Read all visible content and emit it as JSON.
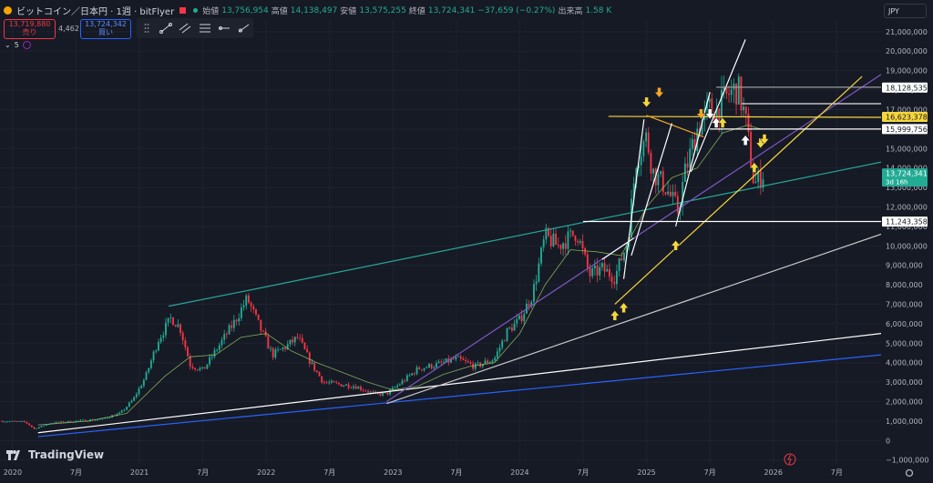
{
  "header": {
    "title": "ビットコイン／日本円 · 1週 · bitFlyer",
    "open_label": "始値",
    "open_value": "13,756,954",
    "high_label": "高値",
    "high_value": "14,138,497",
    "low_label": "安値",
    "low_value": "13,575,255",
    "close_label": "終値",
    "close_value": "13,724,341",
    "change": "−37,659 (−0.27%)",
    "volume_label": "出来高",
    "volume_value": "1.58 K"
  },
  "trade": {
    "sell_price": "13,719,880",
    "sell_label": "売り",
    "spread": "4,462",
    "buy_price": "13,724,342",
    "buy_label": "買い"
  },
  "indicator": {
    "label": "5"
  },
  "currency": "JPY",
  "logo_text": "TradingView",
  "colors": {
    "up": "#22ab94",
    "down": "#f23645",
    "background": "#161a25",
    "highlight": "#f5d63d",
    "purple": "#7e57c2",
    "blue": "#2962ff"
  },
  "chart_data": {
    "type": "candlestick",
    "symbol": "BTC/JPY",
    "interval": "1週",
    "y_ticks": [
      21000000,
      20000000,
      19000000,
      18000000,
      17000000,
      16000000,
      15000000,
      14000000,
      13000000,
      12000000,
      11000000,
      10000000,
      9000000,
      8000000,
      7000000,
      6000000,
      5000000,
      4000000,
      3000000,
      2000000,
      1000000,
      0,
      -1000000
    ],
    "y_tick_labels": [
      "21,000,000",
      "20,000,000",
      "19,000,000",
      "18,000,000",
      "17,000,000",
      "16,000,000",
      "15,000,000",
      "14,000,000",
      "13,000,000",
      "12,000,000",
      "11,000,000",
      "10,000,000",
      "9,000,000",
      "8,000,000",
      "7,000,000",
      "6,000,000",
      "5,000,000",
      "4,000,000",
      "3,000,000",
      "2,000,000",
      "1,000,000",
      "0",
      "−1,000,000"
    ],
    "ylim": [
      -1200000,
      21600000
    ],
    "x_ticks": [
      2020.0,
      2020.5,
      2021.0,
      2021.5,
      2022.0,
      2022.5,
      2023.0,
      2023.5,
      2024.0,
      2024.5,
      2025.0,
      2025.5,
      2026.0,
      2026.5
    ],
    "x_tick_labels": [
      "2020",
      "7月",
      "2021",
      "7月",
      "2022",
      "7月",
      "2023",
      "7月",
      "2024",
      "7月",
      "2025",
      "7月",
      "2026",
      "7月"
    ],
    "xlim": [
      2019.9,
      2026.85
    ],
    "price_points": [
      [
        2019.9,
        1000000
      ],
      [
        2020.1,
        950000
      ],
      [
        2020.17,
        600000
      ],
      [
        2020.3,
        900000
      ],
      [
        2020.5,
        1000000
      ],
      [
        2020.7,
        1100000
      ],
      [
        2020.85,
        1400000
      ],
      [
        2020.95,
        2100000
      ],
      [
        2021.05,
        3300000
      ],
      [
        2021.15,
        5200000
      ],
      [
        2021.25,
        6300000
      ],
      [
        2021.32,
        5800000
      ],
      [
        2021.4,
        3900000
      ],
      [
        2021.5,
        3600000
      ],
      [
        2021.6,
        4600000
      ],
      [
        2021.75,
        6100000
      ],
      [
        2021.85,
        7300000
      ],
      [
        2021.95,
        5800000
      ],
      [
        2022.05,
        4400000
      ],
      [
        2022.15,
        4800000
      ],
      [
        2022.25,
        5300000
      ],
      [
        2022.35,
        4000000
      ],
      [
        2022.45,
        3000000
      ],
      [
        2022.55,
        2900000
      ],
      [
        2022.7,
        2800000
      ],
      [
        2022.85,
        2400000
      ],
      [
        2022.95,
        2400000
      ],
      [
        2023.05,
        2900000
      ],
      [
        2023.2,
        3700000
      ],
      [
        2023.35,
        3900000
      ],
      [
        2023.5,
        4200000
      ],
      [
        2023.65,
        3800000
      ],
      [
        2023.8,
        4200000
      ],
      [
        2023.9,
        5600000
      ],
      [
        2024.0,
        6200000
      ],
      [
        2024.1,
        7500000
      ],
      [
        2024.2,
        10500000
      ],
      [
        2024.3,
        10000000
      ],
      [
        2024.45,
        10700000
      ],
      [
        2024.55,
        8500000
      ],
      [
        2024.65,
        8800000
      ],
      [
        2024.75,
        8400000
      ],
      [
        2024.85,
        10200000
      ],
      [
        2024.92,
        14500000
      ],
      [
        2025.0,
        15600000
      ],
      [
        2025.05,
        13800000
      ],
      [
        2025.15,
        13000000
      ],
      [
        2025.25,
        11800000
      ],
      [
        2025.3,
        13700000
      ],
      [
        2025.4,
        16000000
      ],
      [
        2025.5,
        17100000
      ],
      [
        2025.55,
        16900000
      ],
      [
        2025.65,
        17800000
      ],
      [
        2025.72,
        18100000
      ],
      [
        2025.78,
        16500000
      ],
      [
        2025.85,
        13100000
      ],
      [
        2025.92,
        13724341
      ]
    ],
    "ma_points": [
      [
        2020.2,
        800000
      ],
      [
        2020.6,
        1000000
      ],
      [
        2020.9,
        1400000
      ],
      [
        2021.2,
        3300000
      ],
      [
        2021.4,
        4300000
      ],
      [
        2021.6,
        4400000
      ],
      [
        2021.8,
        5300000
      ],
      [
        2022.0,
        5500000
      ],
      [
        2022.2,
        4600000
      ],
      [
        2022.4,
        4000000
      ],
      [
        2022.6,
        3500000
      ],
      [
        2022.8,
        3000000
      ],
      [
        2023.0,
        2600000
      ],
      [
        2023.2,
        2800000
      ],
      [
        2023.4,
        3400000
      ],
      [
        2023.6,
        3800000
      ],
      [
        2023.8,
        4000000
      ],
      [
        2024.0,
        5500000
      ],
      [
        2024.2,
        8000000
      ],
      [
        2024.4,
        9800000
      ],
      [
        2024.6,
        9700000
      ],
      [
        2024.8,
        9500000
      ],
      [
        2025.0,
        12000000
      ],
      [
        2025.2,
        13500000
      ],
      [
        2025.4,
        14000000
      ],
      [
        2025.6,
        15800000
      ],
      [
        2025.8,
        16200000
      ],
      [
        2025.9,
        16000000
      ]
    ],
    "price_labels": [
      {
        "value": 18128535,
        "label": "18,128,535",
        "style": "white"
      },
      {
        "value": 16623378,
        "label": "16,623,378",
        "style": "yellow"
      },
      {
        "value": 15999756,
        "label": "15,999,756",
        "style": "white"
      },
      {
        "value": 13724341,
        "label": "13,724,341",
        "countdown": "3d 16h",
        "style": "green"
      },
      {
        "value": 11243358,
        "label": "11,243,358",
        "style": "white"
      }
    ],
    "trendlines": [
      {
        "x1": 2020.2,
        "y1": 200000,
        "x2": 2026.85,
        "y2": 4400000,
        "color": "#2962ff"
      },
      {
        "x1": 2020.2,
        "y1": 400000,
        "x2": 2026.85,
        "y2": 5500000,
        "color": "#ffffff"
      },
      {
        "x1": 2022.95,
        "y1": 1900000,
        "x2": 2026.85,
        "y2": 10600000,
        "color": "#c8c8c8"
      },
      {
        "x1": 2021.23,
        "y1": 6900000,
        "x2": 2021.85,
        "y2": 7700000,
        "color": "#26a69a"
      },
      {
        "x1": 2021.85,
        "y1": 7700000,
        "x2": 2024.5,
        "y2": 11200000,
        "color": "#26a69a"
      },
      {
        "x1": 2024.5,
        "y1": 11200000,
        "x2": 2026.85,
        "y2": 14300000,
        "color": "#26a69a"
      },
      {
        "x1": 2022.95,
        "y1": 2000000,
        "x2": 2026.85,
        "y2": 18800000,
        "color": "#7e57c2"
      },
      {
        "x1": 2024.75,
        "y1": 7000000,
        "x2": 2026.7,
        "y2": 18700000,
        "color": "#f5d63d"
      },
      {
        "x1": 2024.7,
        "y1": 16650000,
        "x2": 2026.85,
        "y2": 16600000,
        "color": "#f5d63d"
      },
      {
        "x1": 2025.0,
        "y1": 16700000,
        "x2": 2025.45,
        "y2": 15600000,
        "color": "#f5a623"
      },
      {
        "x1": 2024.65,
        "y1": 9300000,
        "x2": 2024.9,
        "y2": 10400000,
        "color": "#ffffff"
      },
      {
        "x1": 2024.82,
        "y1": 8300000,
        "x2": 2024.98,
        "y2": 16500000,
        "color": "#ffffff"
      },
      {
        "x1": 2024.88,
        "y1": 9500000,
        "x2": 2025.2,
        "y2": 16300000,
        "color": "#ffffff"
      },
      {
        "x1": 2025.23,
        "y1": 11000000,
        "x2": 2025.5,
        "y2": 17900000,
        "color": "#ffffff"
      },
      {
        "x1": 2025.35,
        "y1": 13800000,
        "x2": 2025.78,
        "y2": 20600000,
        "color": "#ffffff"
      },
      {
        "x1": 2025.75,
        "y1": 17300000,
        "x2": 2026.85,
        "y2": 17300000,
        "color": "#e0e0e0"
      },
      {
        "x1": 2025.55,
        "y1": 18150000,
        "x2": 2026.85,
        "y2": 18150000,
        "color": "#9e9e9e"
      },
      {
        "x1": 2024.5,
        "y1": 11250000,
        "x2": 2026.85,
        "y2": 11250000,
        "color": "#ffffff"
      },
      {
        "x1": 2025.5,
        "y1": 16000000,
        "x2": 2026.85,
        "y2": 16000000,
        "color": "#ffffff"
      }
    ],
    "arrows": [
      {
        "x": 2024.75,
        "y": 6400000,
        "dir": "up",
        "color": "#f5d63d"
      },
      {
        "x": 2024.82,
        "y": 6800000,
        "dir": "up",
        "color": "#f5d63d"
      },
      {
        "x": 2025.23,
        "y": 10000000,
        "dir": "up",
        "color": "#f5d63d"
      },
      {
        "x": 2025.0,
        "y": 17400000,
        "dir": "down",
        "color": "#f5d63d"
      },
      {
        "x": 2025.1,
        "y": 17900000,
        "dir": "down",
        "color": "#f5a623"
      },
      {
        "x": 2025.43,
        "y": 16800000,
        "dir": "down",
        "color": "#f5a623"
      },
      {
        "x": 2025.5,
        "y": 16800000,
        "dir": "down",
        "color": "#ffffff"
      },
      {
        "x": 2025.55,
        "y": 16300000,
        "dir": "up",
        "color": "#ffffff"
      },
      {
        "x": 2025.6,
        "y": 16300000,
        "dir": "up",
        "color": "#f5d63d"
      },
      {
        "x": 2025.78,
        "y": 15400000,
        "dir": "up",
        "color": "#ffffff"
      },
      {
        "x": 2025.85,
        "y": 14000000,
        "dir": "up",
        "color": "#f5d63d"
      },
      {
        "x": 2025.9,
        "y": 15300000,
        "dir": "down",
        "color": "#f5d63d"
      },
      {
        "x": 2025.93,
        "y": 15500000,
        "dir": "down",
        "color": "#f5d63d"
      }
    ]
  }
}
